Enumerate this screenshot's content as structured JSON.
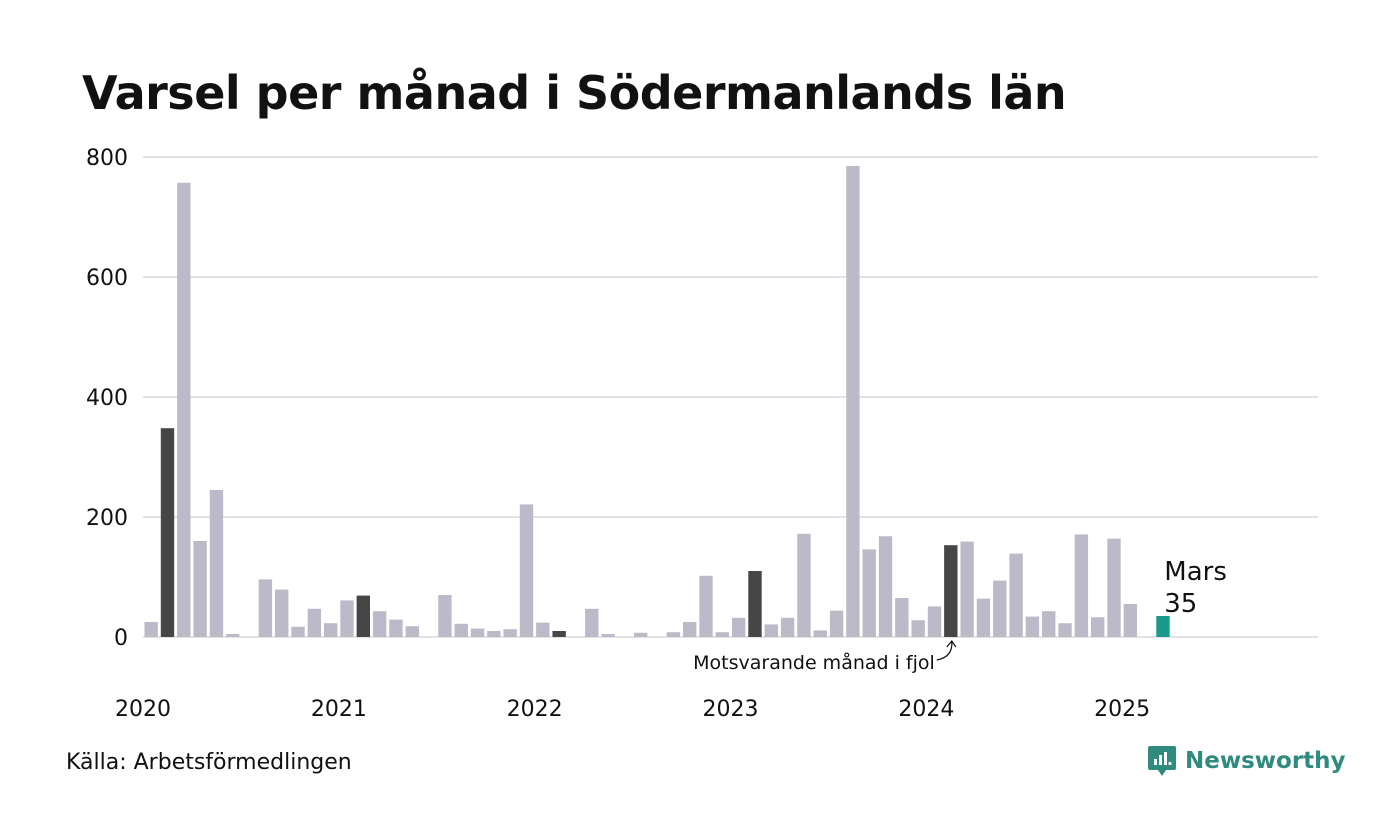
{
  "title": "Varsel per månad i Södermanlands län",
  "source": "Källa: Arbetsförmedlingen",
  "brand": {
    "name": "Newsworthy",
    "icon": "newsworthy-logo-icon"
  },
  "annotation": "Motsvarande månad i fjol",
  "callout": {
    "label": "Mars",
    "value": "35"
  },
  "colors": {
    "normal": "#bcbac8",
    "same_month": "#464646",
    "current": "#1a9a8a",
    "grid": "#e3e3e6",
    "brand": "#2e8b7e"
  },
  "chart_data": {
    "type": "bar",
    "y_ticks": [
      0,
      200,
      400,
      600,
      800
    ],
    "ylim": [
      0,
      800
    ],
    "x_tick_labels": [
      "2020",
      "2021",
      "2022",
      "2023",
      "2024",
      "2025"
    ],
    "x_tick_indices": [
      0,
      12,
      24,
      36,
      48,
      60
    ],
    "total_slots": 72,
    "grid": true,
    "months": [
      "2020-01",
      "2020-02",
      "2020-03",
      "2020-04",
      "2020-05",
      "2020-06",
      "2020-07",
      "2020-08",
      "2020-09",
      "2020-10",
      "2020-11",
      "2020-12",
      "2021-01",
      "2021-02",
      "2021-03",
      "2021-04",
      "2021-05",
      "2021-06",
      "2021-07",
      "2021-08",
      "2021-09",
      "2021-10",
      "2021-11",
      "2021-12",
      "2022-01",
      "2022-02",
      "2022-03",
      "2022-04",
      "2022-05",
      "2022-06",
      "2022-07",
      "2022-08",
      "2022-09",
      "2022-10",
      "2022-11",
      "2022-12",
      "2023-01",
      "2023-02",
      "2023-03",
      "2023-04",
      "2023-05",
      "2023-06",
      "2023-07",
      "2023-08",
      "2023-09",
      "2023-10",
      "2023-11",
      "2023-12",
      "2024-01",
      "2024-02",
      "2024-03",
      "2024-04",
      "2024-05",
      "2024-06",
      "2024-07",
      "2024-08",
      "2024-09",
      "2024-10",
      "2024-11",
      "2024-12",
      "2025-01",
      "2025-02",
      "2025-03"
    ],
    "values": [
      25,
      348,
      757,
      160,
      245,
      5,
      0,
      96,
      79,
      17,
      47,
      23,
      61,
      69,
      43,
      29,
      18,
      0,
      70,
      22,
      14,
      10,
      13,
      221,
      24,
      10,
      0,
      47,
      5,
      0,
      7,
      0,
      8,
      25,
      102,
      8,
      32,
      110,
      21,
      32,
      172,
      11,
      44,
      785,
      146,
      168,
      65,
      28,
      51,
      153,
      159,
      64,
      94,
      139,
      34,
      43,
      23,
      171,
      33,
      164,
      55,
      0,
      35
    ],
    "highlight_same_month_indices": [
      1,
      13,
      25,
      37,
      49
    ],
    "current_index": 62
  }
}
